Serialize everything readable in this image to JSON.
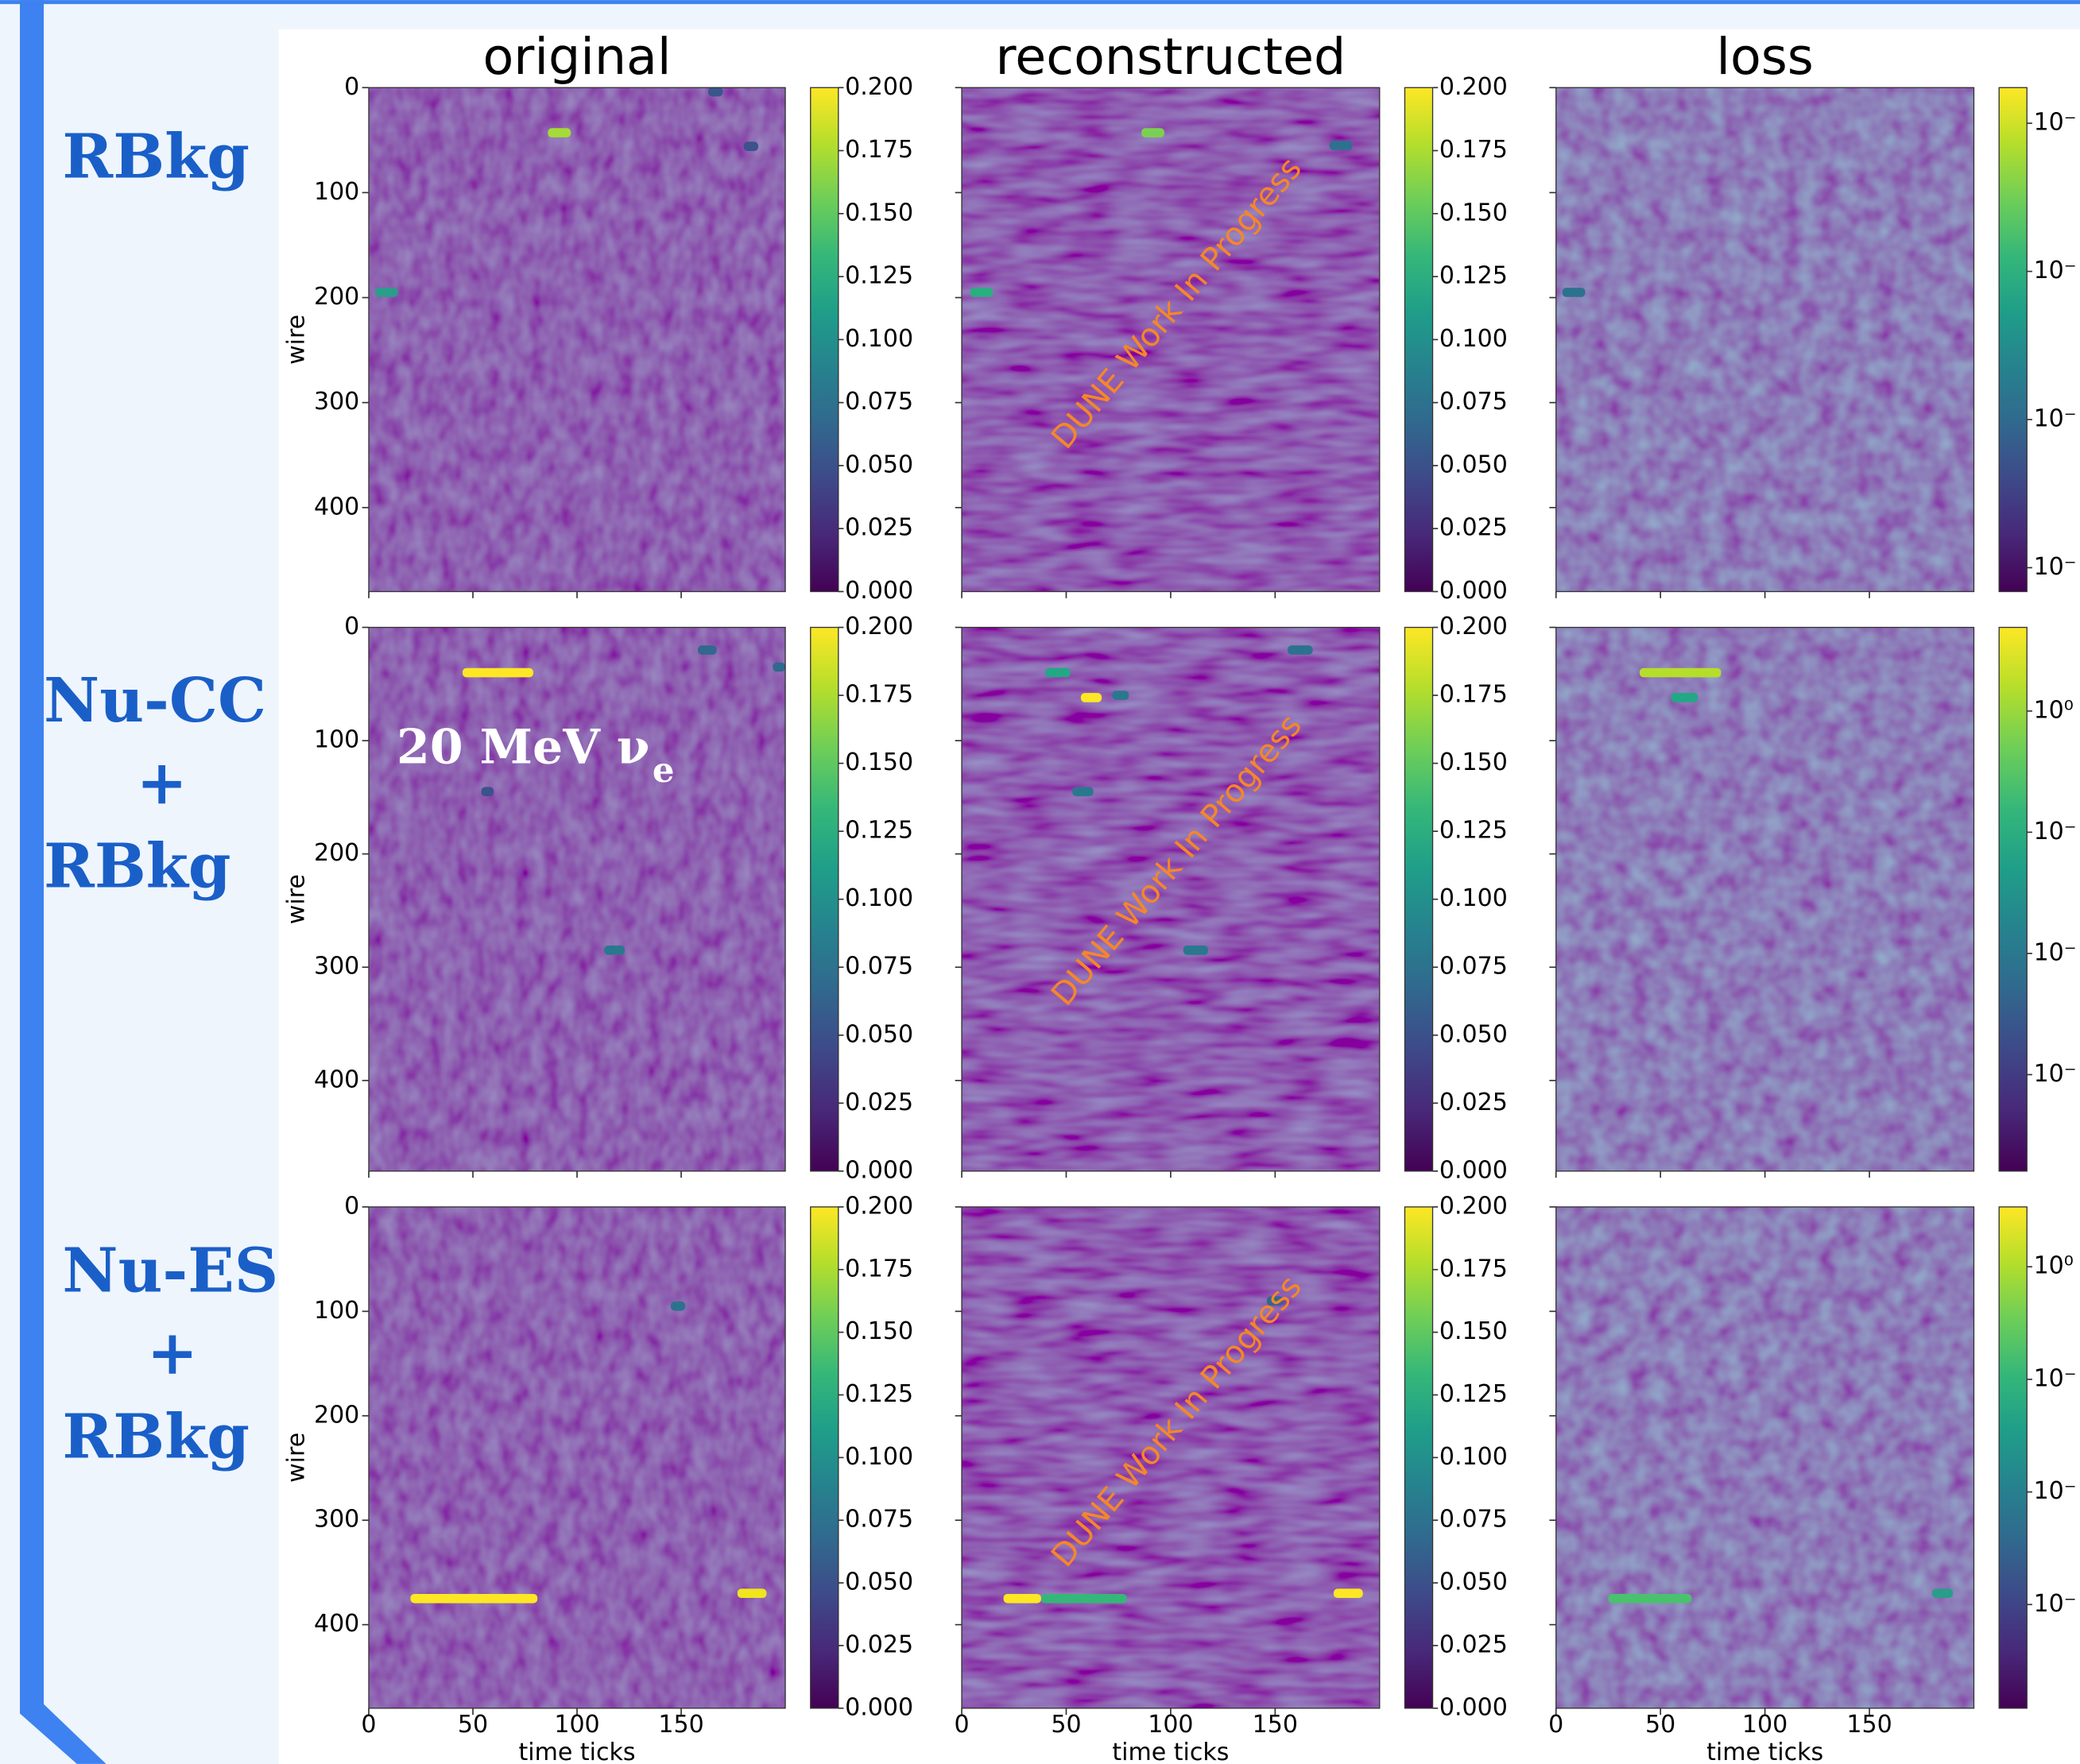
{
  "slide": {
    "row_labels": [
      [
        "RBkg"
      ],
      [
        "Nu-CC",
        "+",
        "RBkg"
      ],
      [
        "Nu-ES",
        "+",
        "RBkg"
      ]
    ]
  },
  "figure": {
    "column_titles": [
      "original",
      "reconstructed",
      "loss"
    ],
    "y_label": "wire",
    "x_label": "time ticks",
    "xlim": [
      0,
      200
    ],
    "xticks": [
      0,
      50,
      100,
      150
    ],
    "ylim": [
      480,
      0
    ],
    "yticks": [
      0,
      100,
      200,
      300,
      400
    ],
    "colorbar": {
      "clim": [
        0,
        0.2
      ],
      "colors": [
        "#440154",
        "#482878",
        "#3e4989",
        "#31688e",
        "#26828e",
        "#1f9e89",
        "#35b779",
        "#6ece58",
        "#b5de2b",
        "#fde725"
      ],
      "ticks": [
        {
          "value": 0,
          "label": "0.000"
        },
        {
          "value": 0.025,
          "label": "0.025"
        },
        {
          "value": 0.05,
          "label": "0.050"
        },
        {
          "value": 0.075,
          "label": "0.075"
        },
        {
          "value": 0.1,
          "label": "0.100"
        },
        {
          "value": 0.125,
          "label": "0.125"
        },
        {
          "value": 0.15,
          "label": "0.150"
        },
        {
          "value": 0.175,
          "label": "0.175"
        },
        {
          "value": 0.2,
          "label": "0.200"
        }
      ]
    },
    "loss_colorbars": [
      {
        "log": true,
        "clim": [
          6.9e-05,
          0.174
        ],
        "ticks": [
          {
            "value": 0.1,
            "label": "10⁻"
          },
          {
            "value": 0.01,
            "label": "10⁻"
          },
          {
            "value": 0.001,
            "label": "10⁻"
          },
          {
            "value": 0.0001,
            "label": "10⁻"
          }
        ]
      },
      {
        "log": true,
        "clim": [
          0.00016,
          4.9
        ],
        "ticks": [
          {
            "value": 1,
            "label": "10⁰"
          },
          {
            "value": 0.1,
            "label": "10⁻"
          },
          {
            "value": 0.01,
            "label": "10⁻"
          },
          {
            "value": 0.001,
            "label": "10⁻"
          }
        ]
      },
      {
        "log": true,
        "clim": [
          0.00012,
          3.4
        ],
        "ticks": [
          {
            "value": 1,
            "label": "10⁰"
          },
          {
            "value": 0.1,
            "label": "10⁻"
          },
          {
            "value": 0.01,
            "label": "10⁻"
          },
          {
            "value": 0.001,
            "label": "10⁻"
          }
        ]
      }
    ],
    "watermark": "DUNE Work In Progress",
    "panels": [
      [
        {
          "hits": [
            {
              "ticks": [
                86,
                97
              ],
              "wire": 43,
              "color": "#a5db36"
            },
            {
              "ticks": [
                3,
                14
              ],
              "wire": 195,
              "color": "#2a9d8a"
            },
            {
              "ticks": [
                163,
                170
              ],
              "wire": 4,
              "color": "#39568c"
            },
            {
              "ticks": [
                180,
                187
              ],
              "wire": 56,
              "color": "#3b528b"
            }
          ]
        },
        {
          "hits": [
            {
              "ticks": [
                86,
                97
              ],
              "wire": 43,
              "color": "#7ad151"
            },
            {
              "ticks": [
                4,
                15
              ],
              "wire": 195,
              "color": "#29af7f"
            },
            {
              "ticks": [
                176,
                187
              ],
              "wire": 55,
              "color": "#2c728e"
            }
          ]
        },
        {
          "hits": [
            {
              "ticks": [
                3,
                14
              ],
              "wire": 195,
              "color": "#2c728e"
            }
          ]
        }
      ],
      [
        {
          "hits": [
            {
              "ticks": [
                45,
                79
              ],
              "wire": 40,
              "color": "#fde725"
            },
            {
              "ticks": [
                158,
                167
              ],
              "wire": 20,
              "color": "#31688e"
            },
            {
              "ticks": [
                113,
                123
              ],
              "wire": 285,
              "color": "#2a788e"
            },
            {
              "ticks": [
                54,
                60
              ],
              "wire": 145,
              "color": "#3b528b"
            },
            {
              "ticks": [
                194,
                200
              ],
              "wire": 35,
              "color": "#31688e"
            }
          ],
          "annotation": {
            "text": "20 MeV ν",
            "subscript": "e"
          }
        },
        {
          "hits": [
            {
              "ticks": [
                40,
                52
              ],
              "wire": 40,
              "color": "#22a884"
            },
            {
              "ticks": [
                57,
                67
              ],
              "wire": 62,
              "color": "#fde725"
            },
            {
              "ticks": [
                72,
                80
              ],
              "wire": 60,
              "color": "#2a788e"
            },
            {
              "ticks": [
                53,
                63
              ],
              "wire": 145,
              "color": "#2a788e"
            },
            {
              "ticks": [
                106,
                118
              ],
              "wire": 285,
              "color": "#2a788e"
            },
            {
              "ticks": [
                156,
                168
              ],
              "wire": 20,
              "color": "#2c728e"
            }
          ]
        },
        {
          "hits": [
            {
              "ticks": [
                40,
                79
              ],
              "wire": 40,
              "color": "#b5de2b"
            },
            {
              "ticks": [
                55,
                68
              ],
              "wire": 62,
              "color": "#22a884"
            }
          ]
        }
      ],
      [
        {
          "hits": [
            {
              "ticks": [
                20,
                81
              ],
              "wire": 375,
              "color": "#fde725"
            },
            {
              "ticks": [
                177,
                191
              ],
              "wire": 370,
              "color": "#f1e51d"
            },
            {
              "ticks": [
                145,
                152
              ],
              "wire": 95,
              "color": "#2c728e"
            }
          ]
        },
        {
          "hits": [
            {
              "ticks": [
                20,
                38
              ],
              "wire": 375,
              "color": "#fde725"
            },
            {
              "ticks": [
                38,
                79
              ],
              "wire": 375,
              "color": "#35b779"
            },
            {
              "ticks": [
                178,
                192
              ],
              "wire": 370,
              "color": "#fde725"
            },
            {
              "ticks": [
                146,
                154
              ],
              "wire": 90,
              "color": "#31688e"
            }
          ]
        },
        {
          "hits": [
            {
              "ticks": [
                25,
                65
              ],
              "wire": 375,
              "color": "#4ac16d"
            },
            {
              "ticks": [
                180,
                190
              ],
              "wire": 370,
              "color": "#2a9d8a"
            }
          ]
        }
      ]
    ]
  }
}
